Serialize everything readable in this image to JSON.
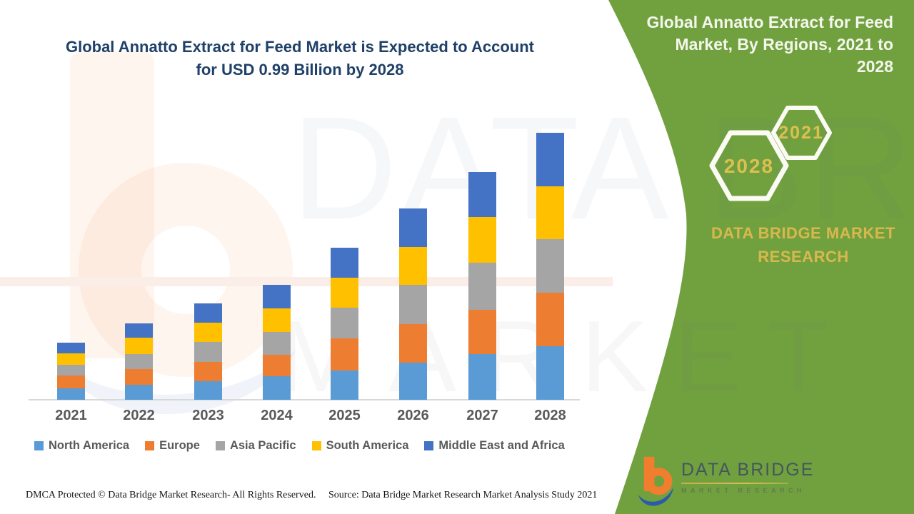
{
  "main": {
    "title_line1": "Global Annatto Extract for Feed Market is Expected to Account",
    "title_line2": "for USD 0.99 Billion by 2028"
  },
  "chart_data": {
    "type": "bar",
    "stacked": true,
    "title": "Global Annatto Extract for Feed Market is Expected to Account for USD 0.99 Billion by 2028",
    "unit": "USD Billion",
    "categories": [
      "2021",
      "2022",
      "2023",
      "2024",
      "2025",
      "2026",
      "2027",
      "2028"
    ],
    "series": [
      {
        "name": "North America",
        "color": "#5B9BD5",
        "values": [
          0.042,
          0.056,
          0.069,
          0.087,
          0.108,
          0.138,
          0.169,
          0.198
        ]
      },
      {
        "name": "Europe",
        "color": "#ED7D31",
        "values": [
          0.048,
          0.058,
          0.071,
          0.079,
          0.119,
          0.143,
          0.164,
          0.198
        ]
      },
      {
        "name": "Asia Pacific",
        "color": "#A5A5A5",
        "values": [
          0.04,
          0.056,
          0.074,
          0.085,
          0.114,
          0.146,
          0.175,
          0.198
        ]
      },
      {
        "name": "South America",
        "color": "#FFC000",
        "values": [
          0.042,
          0.061,
          0.071,
          0.087,
          0.111,
          0.14,
          0.169,
          0.196
        ]
      },
      {
        "name": "Middle East and Africa",
        "color": "#4472C4",
        "values": [
          0.04,
          0.053,
          0.071,
          0.087,
          0.111,
          0.143,
          0.167,
          0.198
        ]
      }
    ],
    "totals": [
      0.212,
      0.284,
      0.356,
      0.425,
      0.563,
      0.71,
      0.844,
      0.988
    ],
    "ylim": [
      0,
      1.0
    ],
    "grid": false,
    "legend_position": "bottom"
  },
  "side_panel": {
    "bg": "#71A13F",
    "title": "Global Annatto Extract for Feed Market, By Regions, 2021 to 2028",
    "hexagons": {
      "large_label": "2028",
      "small_label": "2021"
    },
    "brand_line1": "DATA BRIDGE MARKET",
    "brand_line2": "RESEARCH",
    "accent": "#D9BC4F"
  },
  "logo": {
    "name": "DATA BRIDGE",
    "subtitle": "MARKET RESEARCH"
  },
  "watermark": {
    "top_text": "DATA BRIDGE",
    "bottom_text": "MARKET RESEARCH"
  },
  "footer": {
    "dmca": "DMCA Protected © Data Bridge Market Research- All Rights Reserved.",
    "source": "Source: Data Bridge Market Research Market Analysis Study 2021"
  },
  "colors": {
    "title_navy": "#1F4068",
    "panel_green": "#71A13F",
    "accent_gold": "#D9BC4F",
    "axis_gray": "#D8D8D8",
    "label_gray": "#595959"
  }
}
